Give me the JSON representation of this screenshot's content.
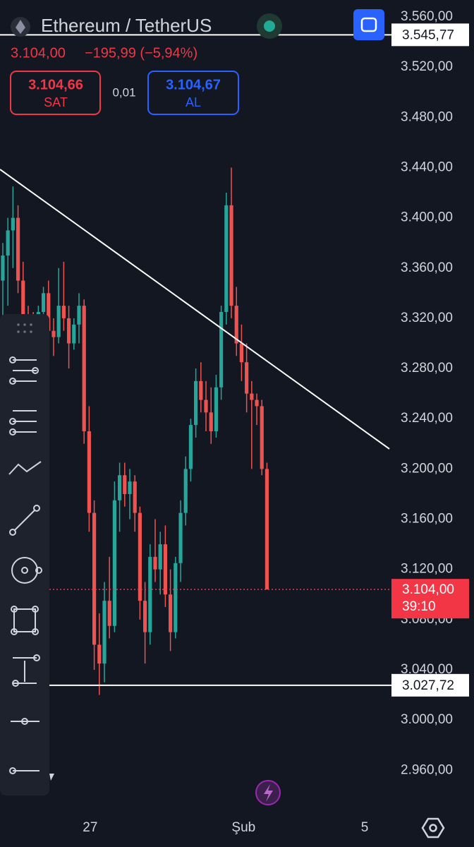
{
  "header": {
    "symbol": "Ethereum / TetherUS",
    "price": "3.104,00",
    "change": "−195,99 (−5,94%)",
    "sell_price": "3.104,66",
    "sell_label": "SAT",
    "spread": "0,01",
    "buy_price": "3.104,67",
    "buy_label": "AL"
  },
  "chart_data": {
    "type": "candlestick",
    "up_color": "#26a69a",
    "down_color": "#ef5350",
    "ylim": [
      2927,
      3573.5
    ],
    "yticks": [
      {
        "value": 2960,
        "label": "2.960,00"
      },
      {
        "value": 3000,
        "label": "3.000,00"
      },
      {
        "value": 3040,
        "label": "3.040,00"
      },
      {
        "value": 3080,
        "label": "3.080,00"
      },
      {
        "value": 3120,
        "label": "3.120,00"
      },
      {
        "value": 3160,
        "label": "3.160,00"
      },
      {
        "value": 3200,
        "label": "3.200,00"
      },
      {
        "value": 3240,
        "label": "3.240,00"
      },
      {
        "value": 3280,
        "label": "3.280,00"
      },
      {
        "value": 3320,
        "label": "3.320,00"
      },
      {
        "value": 3360,
        "label": "3.360,00"
      },
      {
        "value": 3400,
        "label": "3.400,00"
      },
      {
        "value": 3440,
        "label": "3.440,00"
      },
      {
        "value": 3480,
        "label": "3.480,00"
      },
      {
        "value": 3520,
        "label": "3.520,00"
      },
      {
        "value": 3560,
        "label": "3.560,00"
      }
    ],
    "xlim": [
      -0.55,
      76.1
    ],
    "xticks": [
      {
        "value": 17.2,
        "label": "27"
      },
      {
        "value": 47.4,
        "label": "Şub"
      },
      {
        "value": 71.25,
        "label": "5"
      }
    ],
    "grid": true,
    "open": [
      3350,
      3370,
      3390,
      3400,
      3350,
      3320,
      3310,
      3300,
      3325,
      3340,
      3310,
      3305,
      3330,
      3320,
      3300,
      3315,
      3330,
      3230,
      3165,
      3060,
      3045,
      3095,
      3075,
      3175,
      3195,
      3180,
      3190,
      3165,
      3095,
      3070,
      3130,
      3120,
      3140,
      3100,
      3070,
      3125,
      3165,
      3200,
      3235,
      3270,
      3255,
      3245,
      3230,
      3265,
      3325,
      3410,
      3330,
      3300,
      3285,
      3260,
      3255,
      3250,
      3200
    ],
    "high": [
      3380,
      3400,
      3425,
      3410,
      3365,
      3330,
      3325,
      3330,
      3345,
      3350,
      3320,
      3360,
      3365,
      3330,
      3320,
      3340,
      3335,
      3250,
      3175,
      3085,
      3110,
      3130,
      3190,
      3205,
      3205,
      3200,
      3195,
      3170,
      3110,
      3140,
      3160,
      3150,
      3155,
      3120,
      3130,
      3175,
      3210,
      3240,
      3280,
      3285,
      3270,
      3265,
      3275,
      3330,
      3420,
      3440,
      3345,
      3315,
      3300,
      3270,
      3260,
      3255,
      3205
    ],
    "low": [
      3310,
      3330,
      3360,
      3340,
      3310,
      3300,
      3280,
      3290,
      3310,
      3300,
      3290,
      3300,
      3310,
      3280,
      3295,
      3300,
      3220,
      3150,
      3040,
      3020,
      3030,
      3065,
      3070,
      3150,
      3170,
      3160,
      3150,
      3080,
      3045,
      3060,
      3110,
      3100,
      3090,
      3055,
      3065,
      3110,
      3155,
      3190,
      3225,
      3245,
      3230,
      3220,
      3225,
      3255,
      3315,
      3320,
      3290,
      3270,
      3245,
      3200,
      3235,
      3195,
      3104
    ],
    "close": [
      3370,
      3390,
      3400,
      3350,
      3320,
      3310,
      3300,
      3325,
      3340,
      3310,
      3305,
      3330,
      3320,
      3300,
      3315,
      3330,
      3230,
      3165,
      3060,
      3045,
      3095,
      3075,
      3175,
      3195,
      3180,
      3190,
      3165,
      3095,
      3070,
      3130,
      3120,
      3140,
      3100,
      3070,
      3125,
      3165,
      3200,
      3235,
      3270,
      3255,
      3245,
      3230,
      3265,
      3325,
      3410,
      3330,
      3300,
      3285,
      3260,
      3255,
      3250,
      3200,
      3104
    ],
    "hlines": [
      {
        "value": 3545.77,
        "label": "3.545,77"
      },
      {
        "value": 3027.72,
        "label": "3.027,72"
      }
    ],
    "last_price": {
      "value": 3104,
      "label": "3.104,00"
    },
    "countdown": "39:10"
  }
}
